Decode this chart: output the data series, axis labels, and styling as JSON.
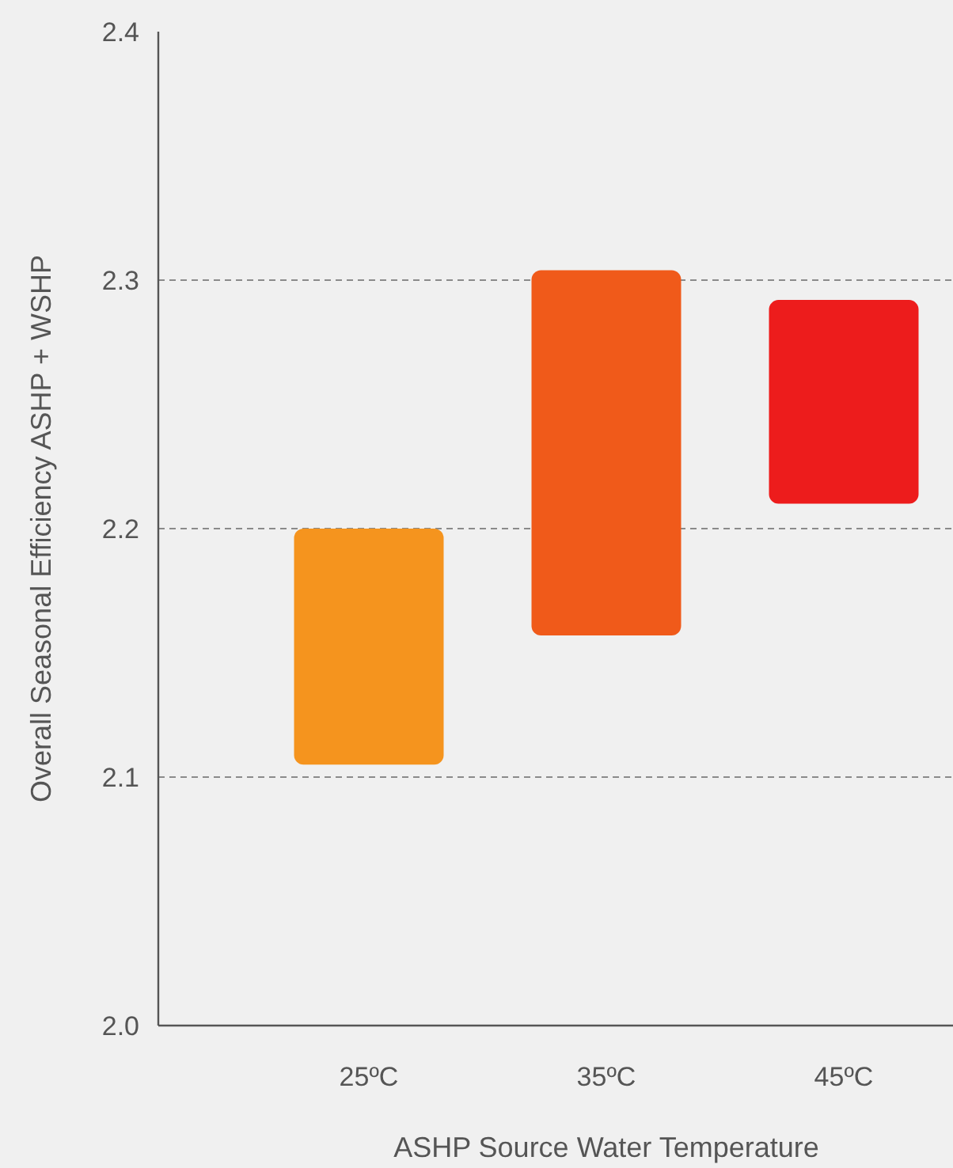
{
  "chart_data": {
    "type": "bar",
    "xlabel": "ASHP Source Water Temperature",
    "ylabel": "Overall Seasonal Efficiency ASHP + WSHP",
    "categories": [
      "25ºC",
      "35ºC",
      "45ºC"
    ],
    "values": [
      0.095,
      0.147,
      0.082
    ],
    "base": [
      2.105,
      2.157,
      2.21
    ],
    "colors": [
      "#f5941e",
      "#f05a1a",
      "#ed1c1c"
    ],
    "ylim": [
      2.0,
      2.4
    ],
    "yticks": [
      {
        "value": 2.0,
        "label": "2.0"
      },
      2.1,
      2.2,
      2.3,
      2.4
    ],
    "grid": "y"
  }
}
